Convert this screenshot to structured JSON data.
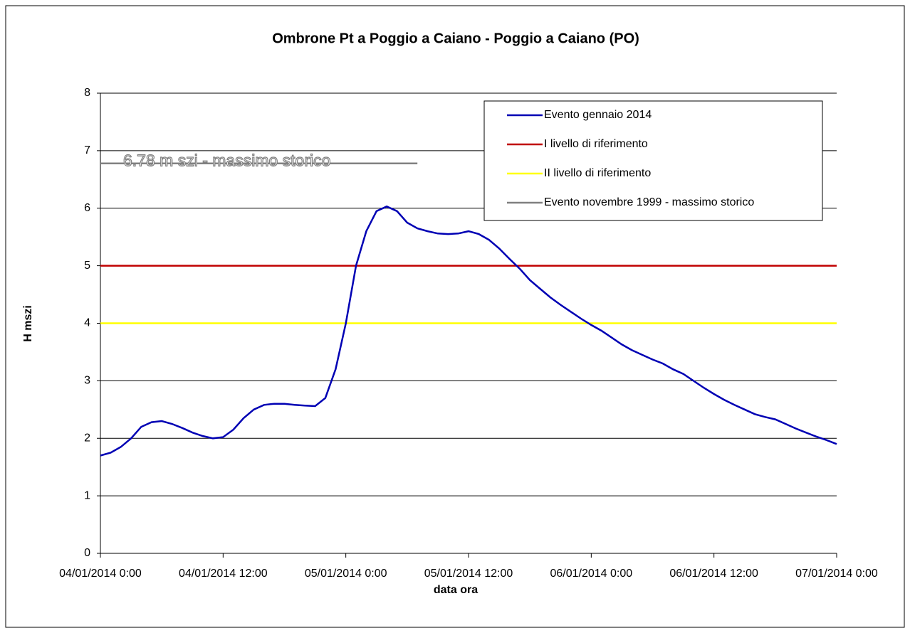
{
  "chart_data": {
    "type": "line",
    "title": "Ombrone Pt a Poggio a Caiano - Poggio a Caiano (PO)",
    "xlabel": "data ora",
    "ylabel": "H mszi",
    "annotation": "6.78 m szi - massimo storico",
    "xlim": [
      "04/01/2014 0:00",
      "07/01/2014 0:00"
    ],
    "xticks": [
      "04/01/2014 0:00",
      "04/01/2014 12:00",
      "05/01/2014 0:00",
      "05/01/2014 12:00",
      "06/01/2014 0:00",
      "06/01/2014 12:00",
      "07/01/2014 0:00"
    ],
    "ylim": [
      0,
      8
    ],
    "yticks": [
      0,
      1,
      2,
      3,
      4,
      5,
      6,
      7,
      8
    ],
    "grid": true,
    "legend": "top-right",
    "series": [
      {
        "name": "Evento gennaio 2014",
        "color": "#0000b4",
        "x": [
          "04/01/2014 0:00",
          "04/01/2014 1:00",
          "04/01/2014 2:00",
          "04/01/2014 3:00",
          "04/01/2014 4:00",
          "04/01/2014 5:00",
          "04/01/2014 6:00",
          "04/01/2014 7:00",
          "04/01/2014 8:00",
          "04/01/2014 9:00",
          "04/01/2014 10:00",
          "04/01/2014 11:00",
          "04/01/2014 12:00",
          "04/01/2014 13:00",
          "04/01/2014 14:00",
          "04/01/2014 15:00",
          "04/01/2014 16:00",
          "04/01/2014 17:00",
          "04/01/2014 18:00",
          "04/01/2014 19:00",
          "04/01/2014 20:00",
          "04/01/2014 21:00",
          "04/01/2014 22:00",
          "04/01/2014 23:00",
          "05/01/2014 0:00",
          "05/01/2014 1:00",
          "05/01/2014 2:00",
          "05/01/2014 3:00",
          "05/01/2014 4:00",
          "05/01/2014 5:00",
          "05/01/2014 6:00",
          "05/01/2014 7:00",
          "05/01/2014 8:00",
          "05/01/2014 9:00",
          "05/01/2014 10:00",
          "05/01/2014 11:00",
          "05/01/2014 12:00",
          "05/01/2014 13:00",
          "05/01/2014 14:00",
          "05/01/2014 15:00",
          "05/01/2014 16:00",
          "05/01/2014 17:00",
          "05/01/2014 18:00",
          "05/01/2014 19:00",
          "05/01/2014 20:00",
          "05/01/2014 21:00",
          "05/01/2014 22:00",
          "05/01/2014 23:00",
          "06/01/2014 0:00",
          "06/01/2014 1:00",
          "06/01/2014 2:00",
          "06/01/2014 3:00",
          "06/01/2014 4:00",
          "06/01/2014 5:00",
          "06/01/2014 6:00",
          "06/01/2014 7:00",
          "06/01/2014 8:00",
          "06/01/2014 9:00",
          "06/01/2014 10:00",
          "06/01/2014 11:00",
          "06/01/2014 12:00",
          "06/01/2014 13:00",
          "06/01/2014 14:00",
          "06/01/2014 15:00",
          "06/01/2014 16:00",
          "06/01/2014 17:00",
          "06/01/2014 18:00",
          "06/01/2014 19:00",
          "06/01/2014 20:00",
          "06/01/2014 21:00",
          "06/01/2014 22:00",
          "06/01/2014 23:00",
          "07/01/2014 0:00"
        ],
        "values": [
          1.7,
          1.75,
          1.85,
          2.0,
          2.2,
          2.28,
          2.3,
          2.25,
          2.18,
          2.1,
          2.04,
          2.0,
          2.02,
          2.15,
          2.35,
          2.5,
          2.58,
          2.6,
          2.6,
          2.58,
          2.57,
          2.56,
          2.7,
          3.2,
          4.0,
          5.0,
          5.6,
          5.95,
          6.03,
          5.95,
          5.75,
          5.65,
          5.6,
          5.56,
          5.55,
          5.56,
          5.6,
          5.55,
          5.45,
          5.3,
          5.12,
          4.95,
          4.75,
          4.6,
          4.45,
          4.32,
          4.2,
          4.08,
          3.97,
          3.87,
          3.75,
          3.63,
          3.53,
          3.45,
          3.37,
          3.3,
          3.2,
          3.12,
          3.0,
          2.88,
          2.77,
          2.67,
          2.58,
          2.5,
          2.42,
          2.37,
          2.33,
          2.25,
          2.17,
          2.1,
          2.03,
          1.97,
          1.9
        ]
      },
      {
        "name": "I livello di riferimento",
        "color": "#c00000",
        "x": [
          "04/01/2014 0:00",
          "07/01/2014 0:00"
        ],
        "values": [
          5,
          5
        ]
      },
      {
        "name": "II livello di riferimento",
        "color": "#ffff00",
        "x": [
          "04/01/2014 0:00",
          "07/01/2014 0:00"
        ],
        "values": [
          4,
          4
        ]
      },
      {
        "name": "Evento novembre 1999 - massimo storico",
        "color": "#808080",
        "x": [
          "04/01/2014 0:00",
          "05/01/2014 7:00"
        ],
        "values": [
          6.78,
          6.78
        ]
      }
    ]
  }
}
